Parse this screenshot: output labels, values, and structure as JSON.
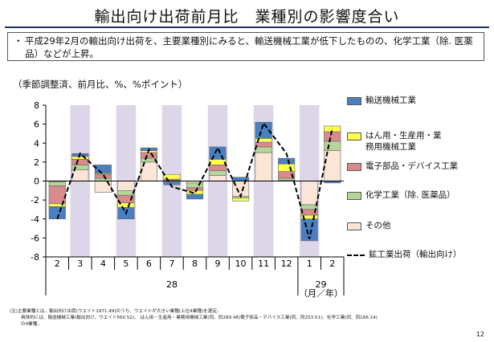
{
  "title": "輸出向け出荷前月比　業種別の影響度合い",
  "callout": {
    "bullet": "・",
    "text": "平成29年2月の輸出向け出荷を、主要業種別にみると、輸送機械工業が低下したものの、化学工業（除. 医薬品）などが上昇。"
  },
  "unit_note": "（季節調整済、前月比、%、%ポイント）",
  "footnote": {
    "line1": "(注)主要業種とは、輸出向け出荷(ウエイト1971.49)のうち、ウエイトが大きい業種(上位4業種)を選定。",
    "line2": "具体的には、輸送機械工業(輸出向け、ウエイト560.52)、 はん用・生産用・業務用機械工業(同、同289.48)電子部品・デバイス工業(同、同253.51)、化学工業(同、同166.14)",
    "line3": "の4業種。"
  },
  "page_number": "12",
  "colors": {
    "transport": "#4a7fc1",
    "machinery": "#ffff4d",
    "electronic": "#d98a8a",
    "chemical": "#b5d699",
    "other": "#fbe5d6",
    "line": "#000000",
    "band": "#dcd6e8"
  },
  "chart_data": {
    "type": "bar",
    "stacked": true,
    "categories": [
      "2",
      "3",
      "4",
      "5",
      "6",
      "7",
      "8",
      "9",
      "10",
      "11",
      "12",
      "1",
      "2"
    ],
    "year_labels": [
      {
        "label": "28",
        "start_index": 0,
        "end_index": 10
      },
      {
        "label": "29",
        "start_index": 11,
        "end_index": 12
      }
    ],
    "period_unit": "（月／年）",
    "ylim": [
      -8,
      8
    ],
    "yticks": [
      -8,
      -6,
      -4,
      -2,
      0,
      2,
      4,
      6,
      8
    ],
    "shaded_categories": [
      1,
      3,
      5,
      7,
      9,
      11
    ],
    "series": [
      {
        "name": "輸送機械工業",
        "key": "transport",
        "values": [
          -1.3,
          0.3,
          0.9,
          -1.2,
          0.3,
          -0.3,
          -0.5,
          1.3,
          0.4,
          1.7,
          0.6,
          -2.3,
          -0.2
        ]
      },
      {
        "name": "はん用・生産用・業務用機械工業",
        "key": "machinery",
        "values": [
          -0.3,
          0.3,
          0.1,
          -0.5,
          0.2,
          0.5,
          -0.4,
          0.6,
          -0.3,
          0.4,
          0.8,
          -0.4,
          0.6
        ]
      },
      {
        "name": "電子部品・デバイス工業",
        "key": "electronic",
        "values": [
          -1.9,
          0.6,
          0.4,
          -0.8,
          0.6,
          0.1,
          -0.3,
          0.6,
          0.0,
          0.5,
          0.7,
          -0.6,
          1.0
        ]
      },
      {
        "name": "化学工業（除. 医薬品）",
        "key": "chemical",
        "values": [
          -0.4,
          0.5,
          0.3,
          -0.5,
          0.4,
          0.1,
          -0.5,
          0.5,
          -0.2,
          0.6,
          0.2,
          -0.5,
          1.0
        ]
      },
      {
        "name": "その他",
        "key": "other",
        "values": [
          -0.1,
          1.2,
          -1.2,
          -1.0,
          2.0,
          -0.1,
          -0.2,
          0.6,
          -1.6,
          3.0,
          0.1,
          -2.5,
          3.2
        ]
      }
    ],
    "line_series": {
      "name": "鉱工業出荷（輸出向け）",
      "key": "line",
      "values": [
        -4.0,
        2.9,
        0.7,
        -3.4,
        3.3,
        -0.6,
        -1.3,
        3.5,
        -1.6,
        6.1,
        2.9,
        -6.1,
        5.6
      ]
    },
    "legend_position": "right"
  }
}
